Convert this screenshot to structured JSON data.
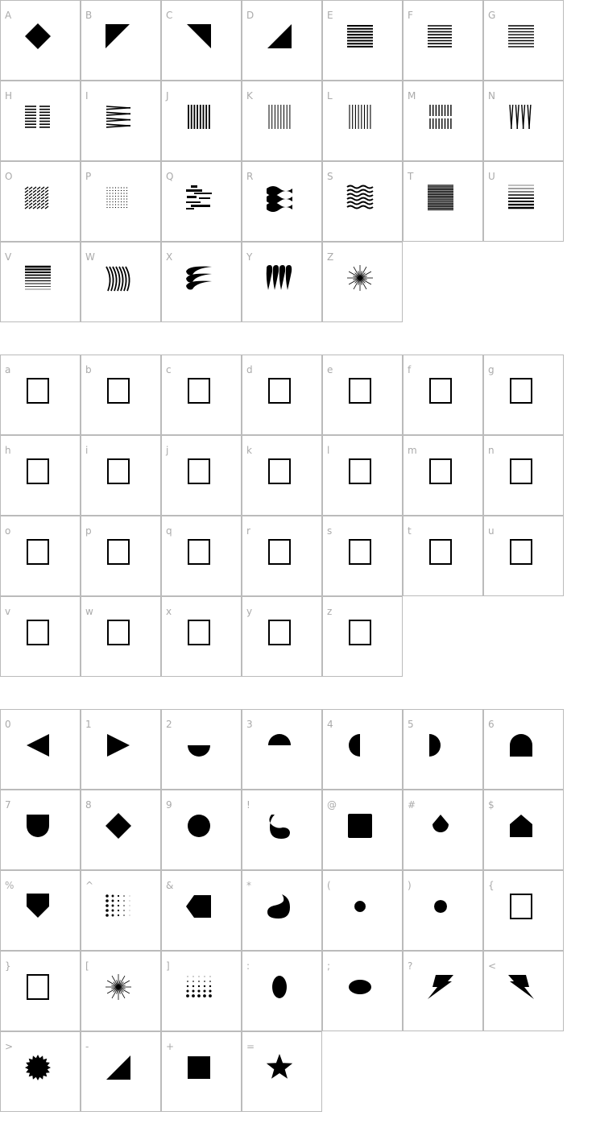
{
  "colors": {
    "border": "#bbbbbb",
    "label": "#aaaaaa",
    "glyph": "#000000"
  },
  "sections": [
    {
      "cells": [
        {
          "char": "A",
          "glyph": "diamond-icon"
        },
        {
          "char": "B",
          "glyph": "triangle-top-left-icon"
        },
        {
          "char": "C",
          "glyph": "triangle-top-right-icon"
        },
        {
          "char": "D",
          "glyph": "triangle-bottom-right-icon"
        },
        {
          "char": "E",
          "glyph": "horizontal-lines-icon"
        },
        {
          "char": "F",
          "glyph": "tapered-lines-icon"
        },
        {
          "char": "G",
          "glyph": "fanned-lines-icon"
        },
        {
          "char": "H",
          "glyph": "split-lines-icon"
        },
        {
          "char": "I",
          "glyph": "zigzag-lines-icon"
        },
        {
          "char": "J",
          "glyph": "vertical-lines-icon"
        },
        {
          "char": "K",
          "glyph": "tapered-vertical-lines-icon"
        },
        {
          "char": "L",
          "glyph": "faded-vertical-lines-icon"
        },
        {
          "char": "M",
          "glyph": "split-vertical-lines-icon"
        },
        {
          "char": "N",
          "glyph": "zigzag-vertical-lines-icon"
        },
        {
          "char": "O",
          "glyph": "diagonal-dash-pattern-icon"
        },
        {
          "char": "P",
          "glyph": "dot-grid-icon"
        },
        {
          "char": "Q",
          "glyph": "glitch-pattern-icon"
        },
        {
          "char": "R",
          "glyph": "thick-waves-icon"
        },
        {
          "char": "S",
          "glyph": "thin-waves-icon"
        },
        {
          "char": "T",
          "glyph": "dense-lines-icon"
        },
        {
          "char": "U",
          "glyph": "lines-thin-to-thick-icon"
        },
        {
          "char": "V",
          "glyph": "lines-thick-to-thin-icon"
        },
        {
          "char": "W",
          "glyph": "curved-strokes-icon"
        },
        {
          "char": "X",
          "glyph": "horns-icon"
        },
        {
          "char": "Y",
          "glyph": "teardrops-icon"
        },
        {
          "char": "Z",
          "glyph": "starburst-icon"
        }
      ]
    },
    {
      "cells": [
        {
          "char": "a",
          "glyph": "empty-box-icon"
        },
        {
          "char": "b",
          "glyph": "empty-box-icon"
        },
        {
          "char": "c",
          "glyph": "empty-box-icon"
        },
        {
          "char": "d",
          "glyph": "empty-box-icon"
        },
        {
          "char": "e",
          "glyph": "empty-box-icon"
        },
        {
          "char": "f",
          "glyph": "empty-box-icon"
        },
        {
          "char": "g",
          "glyph": "empty-box-icon"
        },
        {
          "char": "h",
          "glyph": "empty-box-icon"
        },
        {
          "char": "i",
          "glyph": "empty-box-icon"
        },
        {
          "char": "j",
          "glyph": "empty-box-icon"
        },
        {
          "char": "k",
          "glyph": "empty-box-icon"
        },
        {
          "char": "l",
          "glyph": "empty-box-icon"
        },
        {
          "char": "m",
          "glyph": "empty-box-icon"
        },
        {
          "char": "n",
          "glyph": "empty-box-icon"
        },
        {
          "char": "o",
          "glyph": "empty-box-icon"
        },
        {
          "char": "p",
          "glyph": "empty-box-icon"
        },
        {
          "char": "q",
          "glyph": "empty-box-icon"
        },
        {
          "char": "r",
          "glyph": "empty-box-icon"
        },
        {
          "char": "s",
          "glyph": "empty-box-icon"
        },
        {
          "char": "t",
          "glyph": "empty-box-icon"
        },
        {
          "char": "u",
          "glyph": "empty-box-icon"
        },
        {
          "char": "v",
          "glyph": "empty-box-icon"
        },
        {
          "char": "w",
          "glyph": "empty-box-icon"
        },
        {
          "char": "x",
          "glyph": "empty-box-icon"
        },
        {
          "char": "y",
          "glyph": "empty-box-icon"
        },
        {
          "char": "z",
          "glyph": "empty-box-icon"
        }
      ]
    },
    {
      "cells": [
        {
          "char": "0",
          "glyph": "triangle-left-icon"
        },
        {
          "char": "1",
          "glyph": "triangle-right-icon"
        },
        {
          "char": "2",
          "glyph": "half-circle-bottom-icon"
        },
        {
          "char": "3",
          "glyph": "half-circle-top-icon"
        },
        {
          "char": "4",
          "glyph": "half-circle-left-icon"
        },
        {
          "char": "5",
          "glyph": "half-circle-right-icon"
        },
        {
          "char": "6",
          "glyph": "arch-icon"
        },
        {
          "char": "7",
          "glyph": "u-shape-icon"
        },
        {
          "char": "8",
          "glyph": "diamond-icon"
        },
        {
          "char": "9",
          "glyph": "circle-icon"
        },
        {
          "char": "!",
          "glyph": "swirl-drop-icon"
        },
        {
          "char": "@",
          "glyph": "rounded-square-icon"
        },
        {
          "char": "#",
          "glyph": "drop-icon"
        },
        {
          "char": "$",
          "glyph": "house-icon"
        },
        {
          "char": "%",
          "glyph": "pentagon-down-icon"
        },
        {
          "char": "^",
          "glyph": "dot-gradient-right-icon"
        },
        {
          "char": "&",
          "glyph": "tag-left-icon"
        },
        {
          "char": "*",
          "glyph": "swirl-drop-right-icon"
        },
        {
          "char": "(",
          "glyph": "heptagon-icon"
        },
        {
          "char": ")",
          "glyph": "octagon-icon"
        },
        {
          "char": "{",
          "glyph": "empty-box-icon"
        },
        {
          "char": "}",
          "glyph": "empty-box-icon"
        },
        {
          "char": "[",
          "glyph": "starburst-icon"
        },
        {
          "char": "]",
          "glyph": "dot-gradient-down-icon"
        },
        {
          "char": ":",
          "glyph": "vertical-ellipse-icon"
        },
        {
          "char": ";",
          "glyph": "horizontal-ellipse-icon"
        },
        {
          "char": "?",
          "glyph": "lightning-icon"
        },
        {
          "char": "<",
          "glyph": "lightning-mirrored-icon"
        },
        {
          "char": ">",
          "glyph": "seal-burst-icon"
        },
        {
          "char": "-",
          "glyph": "triangle-bottom-right-icon"
        },
        {
          "char": "+",
          "glyph": "square-icon"
        },
        {
          "char": "=",
          "glyph": "star-icon"
        }
      ]
    }
  ]
}
